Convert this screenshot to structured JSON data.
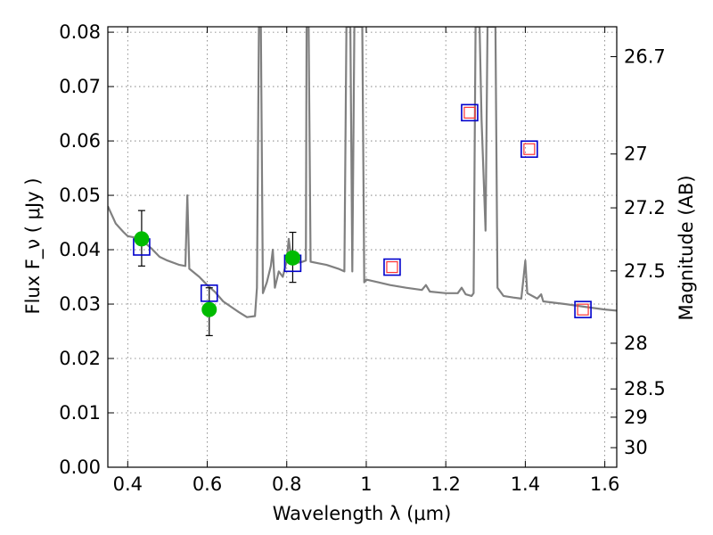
{
  "chart_data": {
    "type": "scatter",
    "xlabel": "Wavelength  λ (μm)",
    "ylabel": "Flux  F_ν  ( μJy )",
    "ylabel_right": "Magnitude (AB)",
    "xlim": [
      0.35,
      1.63
    ],
    "ylim": [
      0.0,
      0.081
    ],
    "grid": true,
    "x_ticks": [
      0.4,
      0.6,
      0.8,
      1.0,
      1.2,
      1.4,
      1.6
    ],
    "x_tick_labels": [
      "0.4",
      "0.6",
      "0.8",
      "1",
      "1.2",
      "1.4",
      "1.6"
    ],
    "y_ticks": [
      0.0,
      0.01,
      0.02,
      0.03,
      0.04,
      0.05,
      0.06,
      0.07,
      0.08
    ],
    "y_tick_labels": [
      "0.00",
      "0.01",
      "0.02",
      "0.03",
      "0.04",
      "0.05",
      "0.06",
      "0.07",
      "0.08"
    ],
    "right_ticks": [
      {
        "flux": 0.0755,
        "label": "26.7"
      },
      {
        "flux": 0.0576,
        "label": "27"
      },
      {
        "flux": 0.0477,
        "label": "27.2"
      },
      {
        "flux": 0.0361,
        "label": "27.5"
      },
      {
        "flux": 0.0228,
        "label": "28"
      },
      {
        "flux": 0.0144,
        "label": "28.5"
      },
      {
        "flux": 0.0092,
        "label": "29"
      },
      {
        "flux": 0.0036,
        "label": "30"
      }
    ],
    "series": [
      {
        "kind": "line",
        "color": "#808080",
        "points": [
          [
            0.35,
            0.048
          ],
          [
            0.37,
            0.0448
          ],
          [
            0.38,
            0.044
          ],
          [
            0.39,
            0.0432
          ],
          [
            0.4,
            0.0425
          ],
          [
            0.42,
            0.0422
          ],
          [
            0.44,
            0.0415
          ],
          [
            0.46,
            0.0402
          ],
          [
            0.48,
            0.0387
          ],
          [
            0.5,
            0.038
          ],
          [
            0.53,
            0.0372
          ],
          [
            0.545,
            0.037
          ],
          [
            0.55,
            0.05
          ],
          [
            0.555,
            0.0365
          ],
          [
            0.58,
            0.035
          ],
          [
            0.6,
            0.0335
          ],
          [
            0.62,
            0.0322
          ],
          [
            0.64,
            0.0305
          ],
          [
            0.66,
            0.0295
          ],
          [
            0.68,
            0.0285
          ],
          [
            0.7,
            0.0276
          ],
          [
            0.72,
            0.0278
          ],
          [
            0.725,
            0.033
          ],
          [
            0.73,
            0.081
          ],
          [
            0.735,
            0.081
          ],
          [
            0.74,
            0.032
          ],
          [
            0.75,
            0.034
          ],
          [
            0.76,
            0.037
          ],
          [
            0.765,
            0.04
          ],
          [
            0.77,
            0.033
          ],
          [
            0.78,
            0.036
          ],
          [
            0.79,
            0.035
          ],
          [
            0.8,
            0.038
          ],
          [
            0.805,
            0.042
          ],
          [
            0.81,
            0.039
          ],
          [
            0.82,
            0.0375
          ],
          [
            0.84,
            0.0378
          ],
          [
            0.848,
            0.038
          ],
          [
            0.85,
            0.081
          ],
          [
            0.855,
            0.081
          ],
          [
            0.86,
            0.0378
          ],
          [
            0.88,
            0.0375
          ],
          [
            0.9,
            0.0372
          ],
          [
            0.93,
            0.0365
          ],
          [
            0.945,
            0.036
          ],
          [
            0.95,
            0.081
          ],
          [
            0.96,
            0.081
          ],
          [
            0.965,
            0.036
          ],
          [
            0.97,
            0.081
          ],
          [
            0.99,
            0.081
          ],
          [
            0.995,
            0.034
          ],
          [
            1.0,
            0.0345
          ],
          [
            1.03,
            0.034
          ],
          [
            1.06,
            0.0335
          ],
          [
            1.1,
            0.033
          ],
          [
            1.14,
            0.0326
          ],
          [
            1.15,
            0.0335
          ],
          [
            1.16,
            0.0323
          ],
          [
            1.2,
            0.032
          ],
          [
            1.23,
            0.032
          ],
          [
            1.24,
            0.033
          ],
          [
            1.25,
            0.0318
          ],
          [
            1.265,
            0.0315
          ],
          [
            1.27,
            0.032
          ],
          [
            1.275,
            0.081
          ],
          [
            1.285,
            0.081
          ],
          [
            1.29,
            0.064
          ],
          [
            1.3,
            0.0435
          ],
          [
            1.305,
            0.081
          ],
          [
            1.325,
            0.081
          ],
          [
            1.33,
            0.033
          ],
          [
            1.345,
            0.0315
          ],
          [
            1.37,
            0.0312
          ],
          [
            1.39,
            0.031
          ],
          [
            1.395,
            0.0345
          ],
          [
            1.4,
            0.038
          ],
          [
            1.405,
            0.032
          ],
          [
            1.43,
            0.031
          ],
          [
            1.44,
            0.0318
          ],
          [
            1.445,
            0.0305
          ],
          [
            1.5,
            0.03
          ],
          [
            1.55,
            0.0295
          ],
          [
            1.6,
            0.029
          ],
          [
            1.63,
            0.0288
          ]
        ]
      },
      {
        "kind": "errorbar",
        "color": "#000000",
        "points": [
          {
            "x": 0.435,
            "low": 0.037,
            "high": 0.0472
          },
          {
            "x": 0.605,
            "low": 0.0242,
            "high": 0.033
          },
          {
            "x": 0.815,
            "low": 0.034,
            "high": 0.0432
          }
        ]
      },
      {
        "kind": "marker-square-blue",
        "color": "#0000cc",
        "points": [
          [
            0.435,
            0.0405
          ],
          [
            0.605,
            0.032
          ],
          [
            0.815,
            0.0375
          ],
          [
            1.065,
            0.0368
          ],
          [
            1.26,
            0.0652
          ],
          [
            1.41,
            0.0585
          ],
          [
            1.545,
            0.029
          ]
        ]
      },
      {
        "kind": "marker-square-red",
        "color": "#ff3333",
        "points": [
          [
            1.065,
            0.0368
          ],
          [
            1.26,
            0.0652
          ],
          [
            1.41,
            0.0585
          ],
          [
            1.545,
            0.029
          ]
        ]
      },
      {
        "kind": "marker-circle-green",
        "color": "#00bb00",
        "points": [
          [
            0.435,
            0.042
          ],
          [
            0.605,
            0.029
          ],
          [
            0.815,
            0.0385
          ]
        ]
      }
    ]
  }
}
